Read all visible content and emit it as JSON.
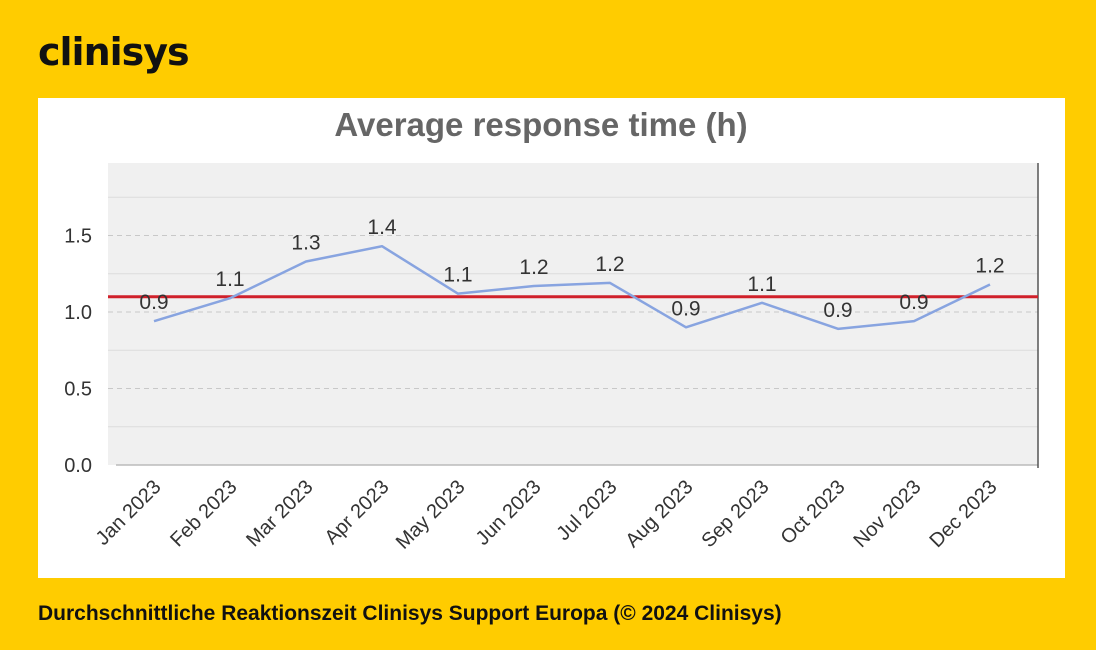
{
  "brand": {
    "logo_text": "clinisys"
  },
  "caption": "Durchschnittliche Reaktionszeit Clinisys Support Europa (© 2024 Clinisys)",
  "colors": {
    "background": "#FFCC00",
    "series_line": "#88A4E0",
    "average_line": "#D0202A",
    "plot_area": "#F0F0F0"
  },
  "chart_data": {
    "type": "line",
    "title": "Average response time (h)",
    "xlabel": "",
    "ylabel": "",
    "categories": [
      "Jan 2023",
      "Feb 2023",
      "Mar 2023",
      "Apr 2023",
      "May 2023",
      "Jun 2023",
      "Jul 2023",
      "Aug 2023",
      "Sep 2023",
      "Oct 2023",
      "Nov 2023",
      "Dec 2023"
    ],
    "series": [
      {
        "values": [
          0.94,
          1.09,
          1.33,
          1.43,
          1.12,
          1.17,
          1.19,
          0.9,
          1.06,
          0.89,
          0.94,
          1.18
        ],
        "labels": [
          "0.9",
          "1.1",
          "1.3",
          "1.4",
          "1.1",
          "1.2",
          "1.2",
          "0.9",
          "1.1",
          "0.9",
          "0.9",
          "1.2"
        ]
      }
    ],
    "reference_line": 1.1,
    "ylim": [
      0,
      1.98
    ],
    "yticks": [
      0.0,
      0.5,
      1.0,
      1.5
    ],
    "ytick_labels": [
      "0.0",
      "0.5",
      "1.0",
      "1.5"
    ],
    "grid": true,
    "legend": "none"
  }
}
